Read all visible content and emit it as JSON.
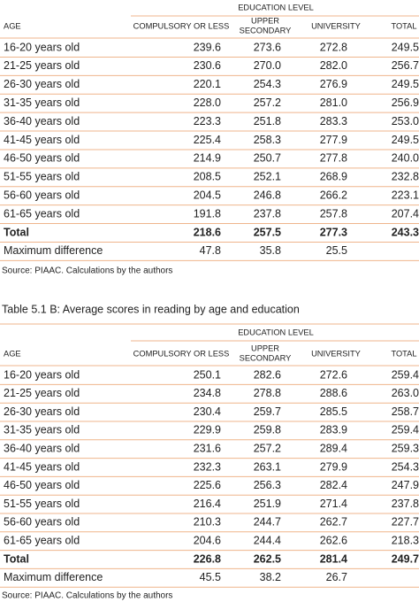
{
  "table_a": {
    "group_header": "EDUCATION LEVEL",
    "columns": [
      "AGE",
      "COMPULSORY OR LESS",
      [
        "UPPER",
        "SECONDARY"
      ],
      "UNIVERSITY",
      "TOTAL"
    ],
    "rows": [
      [
        "16-20 years old",
        "239.6",
        "273.6",
        "272.8",
        "249.5"
      ],
      [
        "21-25 years old",
        "230.6",
        "270.0",
        "282.0",
        "256.7"
      ],
      [
        "26-30 years old",
        "220.1",
        "254.3",
        "276.9",
        "249.5"
      ],
      [
        "31-35 years old",
        "228.0",
        "257.2",
        "281.0",
        "256.9"
      ],
      [
        "36-40 years old",
        "223.3",
        "251.8",
        "283.3",
        "253.0"
      ],
      [
        "41-45 years old",
        "225.4",
        "258.3",
        "277.9",
        "249.5"
      ],
      [
        "46-50 years old",
        "214.9",
        "250.7",
        "277.8",
        "240.0"
      ],
      [
        "51-55 years old",
        "208.5",
        "252.1",
        "268.9",
        "232.8"
      ],
      [
        "56-60 years old",
        "204.5",
        "246.8",
        "266.2",
        "223.1"
      ],
      [
        "61-65 years old",
        "191.8",
        "237.8",
        "257.8",
        "207.4"
      ],
      [
        "Total",
        "218.6",
        "257.5",
        "277.3",
        "243.3"
      ],
      [
        "Maximum difference",
        "47.8",
        "35.8",
        "25.5"
      ]
    ],
    "source": "Source: PIAAC. Calculations by the authors"
  },
  "table_b": {
    "title": "Table 5.1 B: Average scores in reading by age and education",
    "group_header": "EDUCATION LEVEL",
    "columns": [
      "AGE",
      "COMPULSORY OR LESS",
      [
        "UPPER",
        "SECONDARY"
      ],
      "UNIVERSITY",
      "TOTAL"
    ],
    "rows": [
      [
        "16-20 years old",
        "250.1",
        "282.6",
        "272.6",
        "259.4"
      ],
      [
        "21-25 years old",
        "234.8",
        "278.8",
        "288.6",
        "263.0"
      ],
      [
        "26-30 years old",
        "230.4",
        "259.7",
        "285.5",
        "258.7"
      ],
      [
        "31-35 years old",
        "229.9",
        "259.8",
        "283.9",
        "259.4"
      ],
      [
        "36-40 years old",
        "231.6",
        "257.2",
        "289.4",
        "259.3"
      ],
      [
        "41-45 years old",
        "232.3",
        "263.1",
        "279.9",
        "254.3"
      ],
      [
        "46-50 years old",
        "225.6",
        "256.3",
        "282.4",
        "247.9"
      ],
      [
        "51-55 years old",
        "216.4",
        "251.9",
        "271.4",
        "237.8"
      ],
      [
        "56-60 years old",
        "210.3",
        "244.7",
        "262.7",
        "227.7"
      ],
      [
        "61-65 years old",
        "204.6",
        "244.4",
        "262.6",
        "218.3"
      ],
      [
        "Total",
        "226.8",
        "262.5",
        "281.4",
        "249.7"
      ],
      [
        "Maximum difference",
        "45.5",
        "38.2",
        "26.7"
      ]
    ],
    "source": "Source: PIAAC. Calculations by the authors"
  }
}
